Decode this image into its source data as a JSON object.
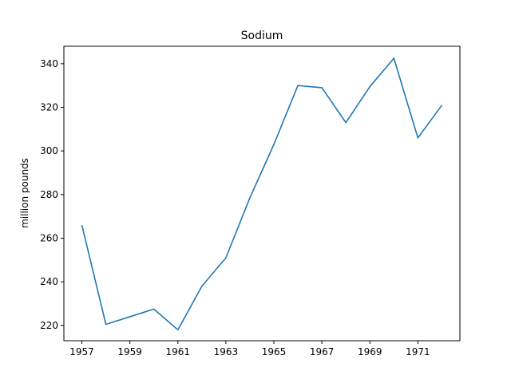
{
  "chart_data": {
    "type": "line",
    "title": "Sodium",
    "xlabel": "",
    "ylabel": "million pounds",
    "x": [
      1957,
      1958,
      1959,
      1960,
      1961,
      1962,
      1963,
      1964,
      1965,
      1966,
      1967,
      1968,
      1969,
      1970,
      1971,
      1972
    ],
    "series": [
      {
        "values": [
          266,
          220.5,
          224,
          227.5,
          218,
          238,
          251,
          278.5,
          303,
          330,
          329,
          313,
          329.5,
          342.5,
          306,
          321
        ]
      }
    ],
    "xlim": [
      1956.25,
      1972.75
    ],
    "ylim": [
      213,
      348
    ],
    "xticks": [
      1957,
      1959,
      1961,
      1963,
      1965,
      1967,
      1969,
      1971
    ],
    "yticks": [
      220,
      240,
      260,
      280,
      300,
      320,
      340
    ],
    "grid": false,
    "colors": {
      "line": "#1f77b4",
      "axes": "#000000",
      "background": "#ffffff"
    }
  }
}
